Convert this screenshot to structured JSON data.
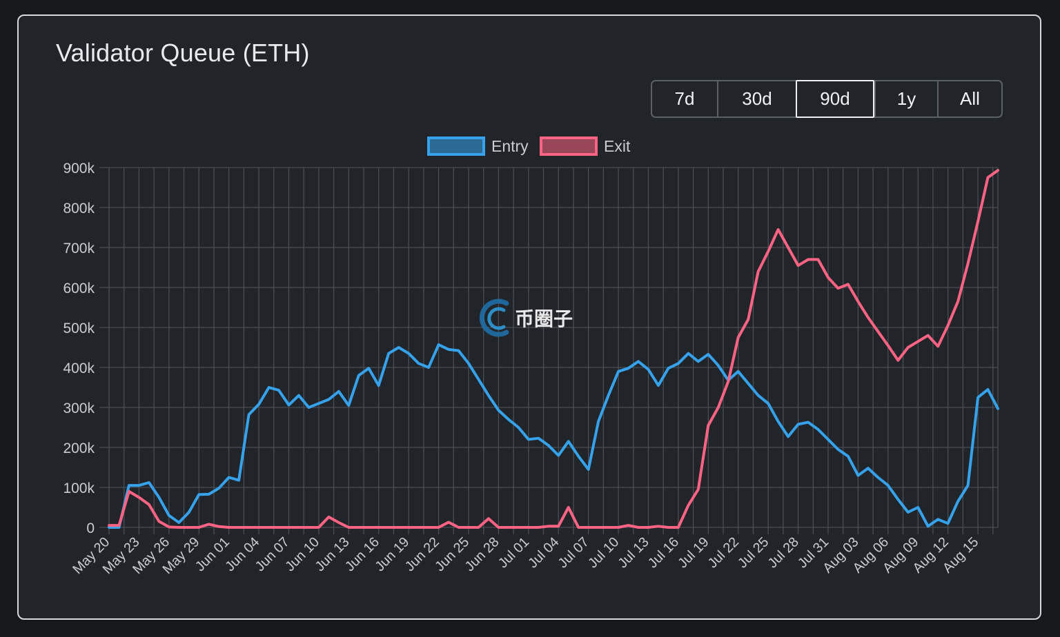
{
  "title": "Validator Queue (ETH)",
  "ranges": [
    "7d",
    "30d",
    "90d",
    "1y",
    "All"
  ],
  "active_range": "90d",
  "watermark": "币圈子",
  "colors": {
    "entry": "#36a2eb",
    "exit": "#ff6384",
    "grid": "#4a4e55",
    "text": "#c9ccd1"
  },
  "chart_data": {
    "type": "line",
    "title": "Validator Queue (ETH)",
    "legend": "top-center",
    "grid": true,
    "ylim": [
      0,
      900000
    ],
    "yticks": [
      "0",
      "100k",
      "200k",
      "300k",
      "400k",
      "500k",
      "600k",
      "700k",
      "800k",
      "900k"
    ],
    "xtick_labels": [
      "May 20",
      "May 23",
      "May 26",
      "May 29",
      "Jun 01",
      "Jun 04",
      "Jun 07",
      "Jun 10",
      "Jun 13",
      "Jun 16",
      "Jun 19",
      "Jun 22",
      "Jun 25",
      "Jun 28",
      "Jul 01",
      "Jul 04",
      "Jul 07",
      "Jul 10",
      "Jul 13",
      "Jul 16",
      "Jul 19",
      "Jul 22",
      "Jul 25",
      "Jul 28",
      "Jul 31",
      "Aug 03",
      "Aug 06",
      "Aug 09",
      "Aug 12",
      "Aug 15"
    ],
    "x_start": "May 20",
    "series": [
      {
        "name": "Entry",
        "color": "#36a2eb",
        "values": [
          0,
          0,
          105000,
          105000,
          112000,
          75000,
          30000,
          12000,
          38000,
          82000,
          83000,
          98000,
          125000,
          118000,
          282000,
          308000,
          350000,
          343000,
          306000,
          330000,
          300000,
          310000,
          320000,
          340000,
          305000,
          380000,
          398000,
          355000,
          435000,
          450000,
          435000,
          410000,
          400000,
          457000,
          445000,
          442000,
          410000,
          370000,
          330000,
          293000,
          270000,
          250000,
          220000,
          223000,
          205000,
          180000,
          215000,
          178000,
          145000,
          265000,
          330000,
          390000,
          398000,
          415000,
          395000,
          355000,
          398000,
          410000,
          435000,
          415000,
          433000,
          405000,
          368000,
          390000,
          360000,
          330000,
          310000,
          265000,
          227000,
          258000,
          263000,
          245000,
          220000,
          195000,
          178000,
          130000,
          148000,
          125000,
          105000,
          70000,
          38000,
          50000,
          3000,
          20000,
          10000,
          65000,
          105000,
          325000,
          345000,
          297000
        ]
      },
      {
        "name": "Exit",
        "color": "#ff6384",
        "values": [
          5000,
          5000,
          90000,
          75000,
          57000,
          15000,
          1000,
          0,
          0,
          0,
          8000,
          2000,
          0,
          0,
          0,
          0,
          0,
          0,
          0,
          0,
          0,
          0,
          26000,
          12000,
          0,
          0,
          0,
          0,
          0,
          0,
          0,
          0,
          0,
          0,
          13000,
          0,
          0,
          0,
          22000,
          0,
          0,
          0,
          0,
          0,
          3000,
          3000,
          50000,
          0,
          0,
          0,
          0,
          0,
          5000,
          0,
          0,
          3000,
          0,
          0,
          55000,
          95000,
          255000,
          300000,
          365000,
          475000,
          520000,
          640000,
          690000,
          745000,
          700000,
          655000,
          670000,
          670000,
          625000,
          598000,
          608000,
          565000,
          525000,
          490000,
          455000,
          418000,
          450000,
          465000,
          480000,
          453000,
          505000,
          565000,
          660000,
          765000,
          875000,
          893000
        ]
      }
    ]
  }
}
